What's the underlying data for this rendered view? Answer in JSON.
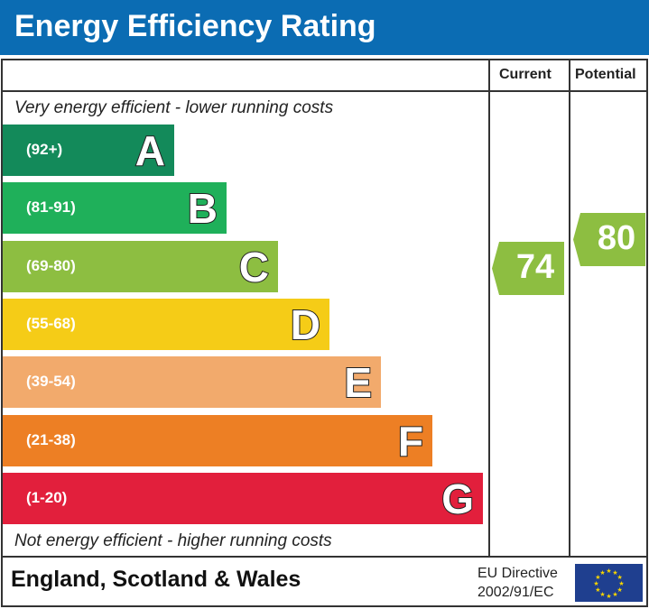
{
  "title": "Energy Efficiency Rating",
  "columns": {
    "current": "Current",
    "potential": "Potential"
  },
  "top_note": "Very energy efficient - lower running costs",
  "bottom_note": "Not energy efficient - higher running costs",
  "footer": {
    "region": "England, Scotland & Wales",
    "directive_line1": "EU Directive",
    "directive_line2": "2002/91/EC"
  },
  "chart_data": {
    "type": "bar",
    "categories": [
      "A",
      "B",
      "C",
      "D",
      "E",
      "F",
      "G"
    ],
    "ranges": [
      "(92+)",
      "(81-91)",
      "(69-80)",
      "(55-68)",
      "(39-54)",
      "(21-38)",
      "(1-20)"
    ],
    "colors": [
      "#138a5a",
      "#1fb05a",
      "#8dbe41",
      "#f5cc17",
      "#f2aa6c",
      "#ed7f24",
      "#e21f3c"
    ],
    "current": {
      "value": 74,
      "band": "C",
      "color": "#8dbe41"
    },
    "potential": {
      "value": 80,
      "band": "C",
      "color": "#8dbe41"
    }
  }
}
